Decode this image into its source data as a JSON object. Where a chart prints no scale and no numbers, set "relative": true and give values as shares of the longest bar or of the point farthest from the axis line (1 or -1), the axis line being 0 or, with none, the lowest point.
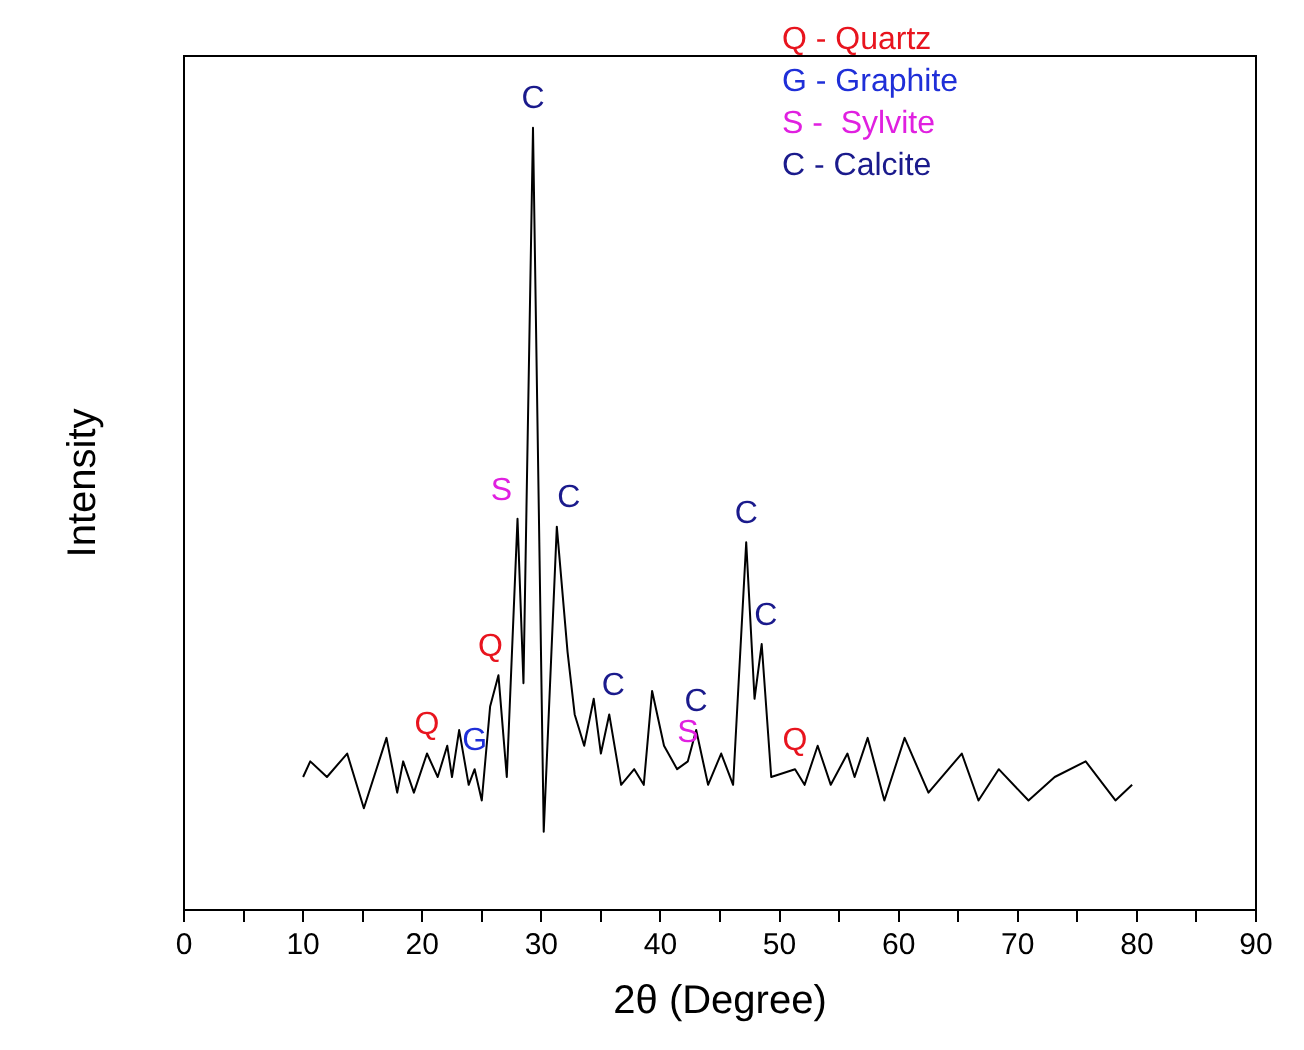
{
  "chart_data": {
    "type": "line",
    "relative": true,
    "xlabel": "2θ (Degree)",
    "ylabel": "Intensity",
    "xlim": [
      0,
      90
    ],
    "xticks": [
      0,
      {
        "value": 5,
        "label": null
      },
      10,
      {
        "value": 15,
        "label": null
      },
      20,
      {
        "value": 25,
        "label": null
      },
      30,
      {
        "value": 35,
        "label": null
      },
      40,
      {
        "value": 45,
        "label": null
      },
      50,
      {
        "value": 55,
        "label": null
      },
      60,
      {
        "value": 65,
        "label": null
      },
      70,
      {
        "value": 75,
        "label": null
      },
      80,
      {
        "value": 85,
        "label": null
      },
      90
    ],
    "grid": false,
    "legend": false,
    "marker": "none",
    "line_style": "solid",
    "series": [
      {
        "color": "#000000",
        "x": [
          10.0,
          10.6,
          12.0,
          13.7,
          15.1,
          17.0,
          17.9,
          18.4,
          19.3,
          20.4,
          21.3,
          22.1,
          22.5,
          23.1,
          23.9,
          24.4,
          25.0,
          25.7,
          26.4,
          27.1,
          28.0,
          28.5,
          29.3,
          30.2,
          31.3,
          32.2,
          32.8,
          33.6,
          34.4,
          35.0,
          35.7,
          36.7,
          37.8,
          38.6,
          39.3,
          40.3,
          41.4,
          42.3,
          43.0,
          44.0,
          45.1,
          46.1,
          47.2,
          47.9,
          48.5,
          49.3,
          51.3,
          52.1,
          53.2,
          54.3,
          55.7,
          56.3,
          57.4,
          58.8,
          60.5,
          62.5,
          65.3,
          66.7,
          68.4,
          70.9,
          73.1,
          75.7,
          78.2,
          79.6
        ],
        "values": [
          0.17,
          0.19,
          0.17,
          0.2,
          0.13,
          0.22,
          0.15,
          0.19,
          0.15,
          0.2,
          0.17,
          0.21,
          0.17,
          0.23,
          0.16,
          0.18,
          0.14,
          0.26,
          0.3,
          0.17,
          0.5,
          0.29,
          1.0,
          0.1,
          0.49,
          0.33,
          0.25,
          0.21,
          0.27,
          0.2,
          0.25,
          0.16,
          0.18,
          0.16,
          0.28,
          0.21,
          0.18,
          0.19,
          0.23,
          0.16,
          0.2,
          0.16,
          0.47,
          0.27,
          0.34,
          0.17,
          0.18,
          0.16,
          0.21,
          0.16,
          0.2,
          0.17,
          0.22,
          0.14,
          0.22,
          0.15,
          0.2,
          0.14,
          0.18,
          0.14,
          0.17,
          0.19,
          0.14,
          0.16
        ]
      }
    ],
    "annotations": [
      {
        "text": "Q",
        "x": 20.4,
        "y": 0.2
      },
      {
        "text": "G",
        "x": 24.4,
        "y": 0.18
      },
      {
        "text": "Q",
        "x": 26.4,
        "y": 0.3
      },
      {
        "text": "S",
        "x": 28.0,
        "y": 0.5
      },
      {
        "text": "C",
        "x": 29.3,
        "y": 1.0
      },
      {
        "text": "C",
        "x": 31.3,
        "y": 0.49
      },
      {
        "text": "C",
        "x": 35.7,
        "y": 0.25
      },
      {
        "text": "S",
        "x": 42.3,
        "y": 0.19
      },
      {
        "text": "C",
        "x": 43.0,
        "y": 0.23
      },
      {
        "text": "C",
        "x": 47.2,
        "y": 0.47
      },
      {
        "text": "C",
        "x": 48.5,
        "y": 0.34
      },
      {
        "text": "Q",
        "x": 51.3,
        "y": 0.18
      },
      "Q - Quartz",
      "G - Graphite",
      "S -  Sylvite",
      "C - Calcite"
    ]
  }
}
